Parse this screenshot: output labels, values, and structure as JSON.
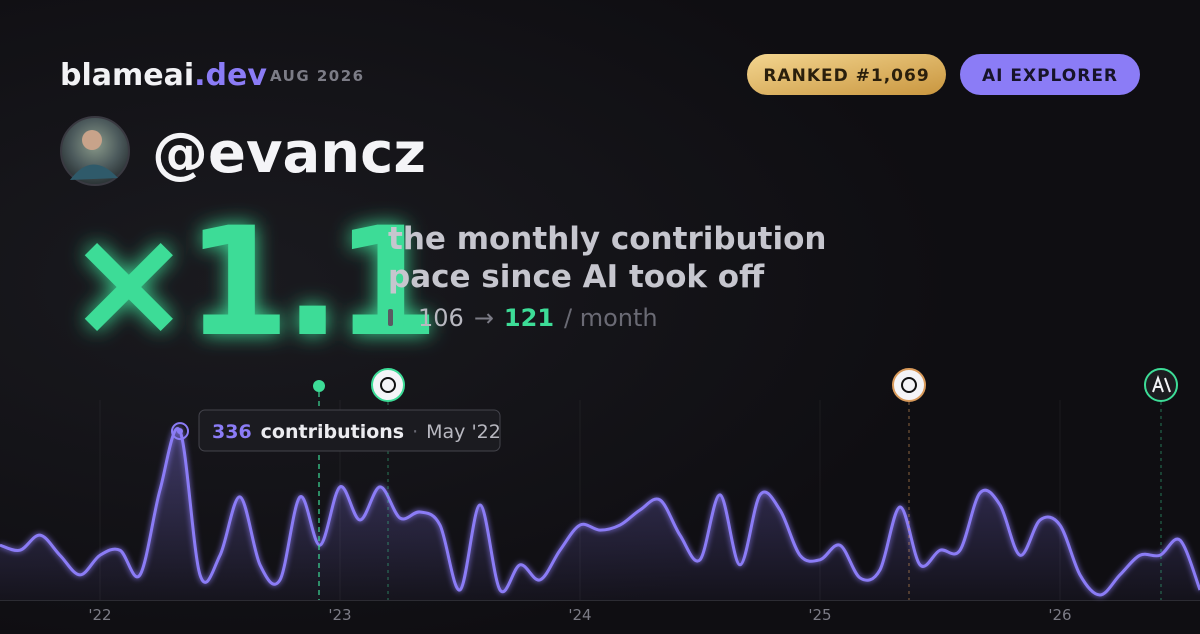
{
  "header": {
    "brand": "blameai",
    "brand_tld": ".dev",
    "period": "AUG 2026",
    "rank_badge": "RANKED #1,069",
    "tier_badge": "AI EXPLORER"
  },
  "profile": {
    "handle": "@evancz"
  },
  "headline": {
    "multiplier": "×1.1",
    "caption_lines": [
      "the monthly contribution",
      "pace since AI took off"
    ],
    "before": 106,
    "arrow": "→",
    "after": 121,
    "unit": "/ month"
  },
  "chart_data": {
    "type": "area",
    "categories": [
      null,
      null,
      null,
      null,
      null,
      "'22",
      null,
      null,
      null,
      null,
      null,
      null,
      null,
      null,
      null,
      null,
      null,
      "'23",
      null,
      null,
      null,
      null,
      null,
      null,
      null,
      null,
      null,
      null,
      null,
      "'24",
      null,
      null,
      null,
      null,
      null,
      null,
      null,
      null,
      null,
      null,
      null,
      "'25",
      null,
      null,
      null,
      null,
      null,
      null,
      null,
      null,
      null,
      null,
      null,
      "'26",
      null,
      null,
      null,
      null,
      null,
      null,
      null
    ],
    "values": [
      109,
      99,
      129,
      89,
      50,
      89,
      99,
      50,
      219,
      336,
      50,
      89,
      205,
      70,
      40,
      205,
      109,
      225,
      159,
      225,
      163,
      175,
      149,
      20,
      189,
      20,
      70,
      40,
      99,
      149,
      139,
      149,
      179,
      199,
      129,
      80,
      209,
      70,
      209,
      179,
      89,
      80,
      109,
      44,
      60,
      185,
      70,
      99,
      99,
      213,
      189,
      89,
      159,
      149,
      50,
      10,
      50,
      89,
      89,
      119,
      20
    ],
    "color": "#8b7cf6",
    "ylim": [
      0,
      360
    ],
    "tooltip": {
      "label": "contributions",
      "date": "May '22"
    }
  }
}
